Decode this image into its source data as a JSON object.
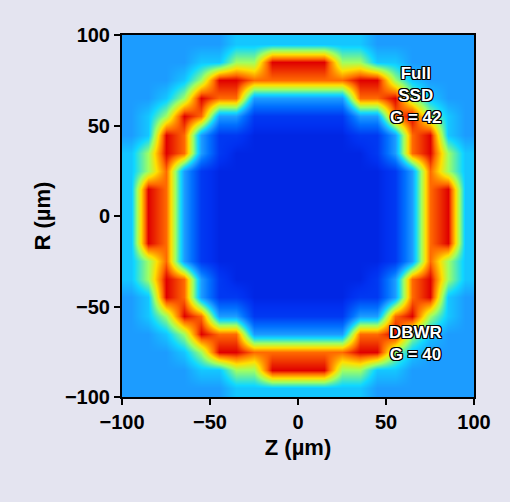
{
  "chart_data": {
    "type": "heatmap",
    "x_label": "Z (µm)",
    "y_label": "R (µm)",
    "x": [
      -95,
      -85,
      -75,
      -65,
      -55,
      -45,
      -35,
      -25,
      -15,
      -5,
      5,
      15,
      25,
      35,
      45,
      55,
      65,
      75,
      85,
      95
    ],
    "y": [
      -95,
      -85,
      -75,
      -65,
      -55,
      -45,
      -35,
      -25,
      -15,
      -5,
      5,
      15,
      25,
      35,
      45,
      55,
      65,
      75,
      85,
      95
    ],
    "cells": [
      [
        0.35,
        0.35,
        0.35,
        0.35,
        0.35,
        0.35,
        0.42,
        0.42,
        0.42,
        0.42,
        0.42,
        0.42,
        0.42,
        0.42,
        0.35,
        0.35,
        0.35,
        0.35,
        0.35,
        0.35
      ],
      [
        0.35,
        0.35,
        0.35,
        0.35,
        0.42,
        0.42,
        0.6,
        0.6,
        0.95,
        0.95,
        0.95,
        0.95,
        0.6,
        0.6,
        0.42,
        0.42,
        0.35,
        0.35,
        0.35,
        0.35
      ],
      [
        0.35,
        0.35,
        0.35,
        0.42,
        0.6,
        0.95,
        0.95,
        0.85,
        0.85,
        0.85,
        0.85,
        0.85,
        0.85,
        0.95,
        0.95,
        0.6,
        0.42,
        0.35,
        0.35,
        0.35
      ],
      [
        0.35,
        0.35,
        0.42,
        0.6,
        0.95,
        0.85,
        0.85,
        0.35,
        0.35,
        0.35,
        0.35,
        0.35,
        0.35,
        0.85,
        0.85,
        0.95,
        0.6,
        0.42,
        0.35,
        0.35
      ],
      [
        0.35,
        0.42,
        0.6,
        0.95,
        0.85,
        0.35,
        0.35,
        0.12,
        0.12,
        0.12,
        0.12,
        0.12,
        0.12,
        0.35,
        0.35,
        0.85,
        0.95,
        0.6,
        0.42,
        0.35
      ],
      [
        0.35,
        0.42,
        0.95,
        0.85,
        0.35,
        0.12,
        0.12,
        0.08,
        0.08,
        0.08,
        0.08,
        0.08,
        0.08,
        0.12,
        0.12,
        0.35,
        0.85,
        0.95,
        0.42,
        0.35
      ],
      [
        0.42,
        0.6,
        0.95,
        0.85,
        0.35,
        0.12,
        0.08,
        0.08,
        0.08,
        0.08,
        0.08,
        0.08,
        0.08,
        0.08,
        0.12,
        0.35,
        0.85,
        0.95,
        0.6,
        0.42
      ],
      [
        0.42,
        0.6,
        0.85,
        0.35,
        0.12,
        0.08,
        0.08,
        0.08,
        0.08,
        0.08,
        0.08,
        0.08,
        0.08,
        0.08,
        0.08,
        0.12,
        0.35,
        0.85,
        0.6,
        0.42
      ],
      [
        0.42,
        0.95,
        0.85,
        0.35,
        0.12,
        0.08,
        0.08,
        0.08,
        0.08,
        0.08,
        0.08,
        0.08,
        0.08,
        0.08,
        0.08,
        0.12,
        0.35,
        0.85,
        0.95,
        0.42
      ],
      [
        0.42,
        0.95,
        0.85,
        0.35,
        0.12,
        0.08,
        0.08,
        0.08,
        0.08,
        0.08,
        0.08,
        0.08,
        0.08,
        0.08,
        0.08,
        0.12,
        0.35,
        0.85,
        0.95,
        0.42
      ],
      [
        0.42,
        0.95,
        0.85,
        0.35,
        0.12,
        0.08,
        0.08,
        0.08,
        0.08,
        0.08,
        0.08,
        0.08,
        0.08,
        0.08,
        0.08,
        0.12,
        0.35,
        0.85,
        0.95,
        0.42
      ],
      [
        0.42,
        0.95,
        0.85,
        0.35,
        0.12,
        0.08,
        0.08,
        0.08,
        0.08,
        0.08,
        0.08,
        0.08,
        0.08,
        0.08,
        0.08,
        0.12,
        0.35,
        0.85,
        0.95,
        0.42
      ],
      [
        0.42,
        0.6,
        0.85,
        0.35,
        0.12,
        0.08,
        0.08,
        0.08,
        0.08,
        0.08,
        0.08,
        0.08,
        0.08,
        0.08,
        0.08,
        0.12,
        0.35,
        0.85,
        0.6,
        0.42
      ],
      [
        0.42,
        0.6,
        0.95,
        0.85,
        0.35,
        0.12,
        0.08,
        0.08,
        0.08,
        0.08,
        0.08,
        0.08,
        0.08,
        0.08,
        0.12,
        0.35,
        0.85,
        0.95,
        0.6,
        0.42
      ],
      [
        0.35,
        0.42,
        0.95,
        0.85,
        0.35,
        0.12,
        0.12,
        0.08,
        0.08,
        0.08,
        0.08,
        0.08,
        0.08,
        0.12,
        0.12,
        0.35,
        0.85,
        0.95,
        0.42,
        0.35
      ],
      [
        0.35,
        0.42,
        0.6,
        0.95,
        0.85,
        0.35,
        0.35,
        0.12,
        0.12,
        0.12,
        0.12,
        0.12,
        0.12,
        0.35,
        0.35,
        0.85,
        0.95,
        0.6,
        0.42,
        0.35
      ],
      [
        0.35,
        0.35,
        0.42,
        0.6,
        0.95,
        0.85,
        0.85,
        0.35,
        0.35,
        0.35,
        0.35,
        0.35,
        0.35,
        0.85,
        0.85,
        0.95,
        0.6,
        0.42,
        0.35,
        0.35
      ],
      [
        0.35,
        0.35,
        0.35,
        0.42,
        0.6,
        0.95,
        0.95,
        0.85,
        0.85,
        0.85,
        0.85,
        0.85,
        0.85,
        0.95,
        0.95,
        0.6,
        0.42,
        0.35,
        0.35,
        0.35
      ],
      [
        0.35,
        0.35,
        0.35,
        0.35,
        0.42,
        0.42,
        0.6,
        0.6,
        0.95,
        0.95,
        0.95,
        0.95,
        0.6,
        0.6,
        0.42,
        0.42,
        0.35,
        0.35,
        0.35,
        0.35
      ],
      [
        0.35,
        0.35,
        0.35,
        0.35,
        0.35,
        0.35,
        0.42,
        0.42,
        0.42,
        0.42,
        0.42,
        0.42,
        0.42,
        0.42,
        0.35,
        0.35,
        0.35,
        0.35,
        0.35,
        0.35
      ]
    ],
    "zlim": [
      0,
      1
    ],
    "xlim": [
      -100,
      100
    ],
    "ylim": [
      -100,
      100
    ],
    "xticks": [
      {
        "value": -100,
        "label": "−100"
      },
      {
        "value": -50,
        "label": "−50"
      },
      0,
      50,
      100
    ],
    "yticks": [
      {
        "value": -100,
        "label": "−100"
      },
      {
        "value": -50,
        "label": "−50"
      },
      0,
      50,
      100
    ],
    "annotations": [
      {
        "lines": [
          "Full",
          "SSD",
          "G = 42"
        ]
      },
      {
        "lines": [
          "DBWR",
          "G = 40"
        ]
      }
    ],
    "grid": false
  }
}
